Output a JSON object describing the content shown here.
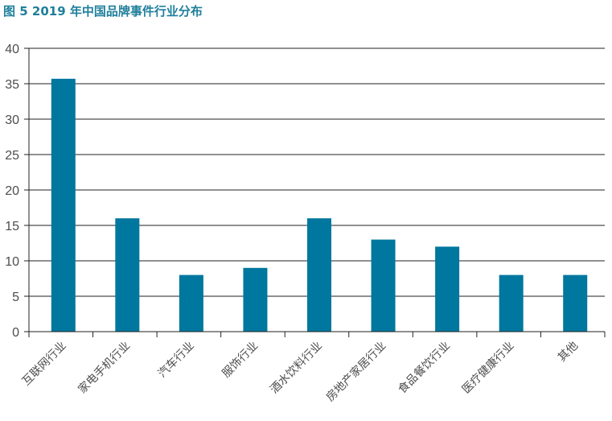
{
  "title": "图 5  2019 年中国品牌事件行业分布",
  "colors": {
    "title": "#1f7f9b",
    "bar": "#00779e",
    "grid": "#222222",
    "text": "#4d4d4d"
  },
  "chart_data": {
    "type": "bar",
    "title": "图 5  2019 年中国品牌事件行业分布",
    "xlabel": "",
    "ylabel": "",
    "categories": [
      "互联网行业",
      "家电手机行业",
      "汽车行业",
      "服饰行业",
      "酒水饮料行业",
      "房地产家居行业",
      "食品餐饮行业",
      "医疗健康行业",
      "其他"
    ],
    "values": [
      35.7,
      16,
      8,
      9,
      16,
      13,
      12,
      8,
      8
    ],
    "ylim": [
      0,
      40
    ],
    "yticks": [
      0,
      5,
      10,
      15,
      20,
      25,
      30,
      35,
      40
    ],
    "grid": true,
    "legend": "none"
  }
}
